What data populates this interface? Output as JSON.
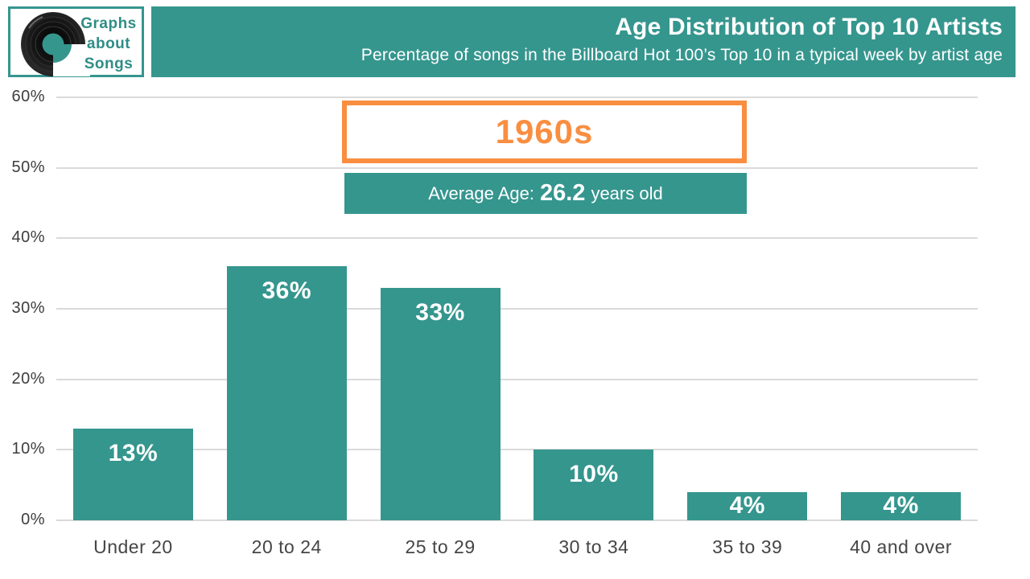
{
  "logo": {
    "line1": "Graphs",
    "line2": "about",
    "line3": "Songs"
  },
  "header": {
    "title": "Age Distribution of Top 10 Artists",
    "subtitle": "Percentage of songs in the Billboard Hot 100’s Top 10 in a typical week by artist age"
  },
  "annotation": {
    "decade": "1960s",
    "avg_prefix": "Average Age:",
    "avg_value": "26.2",
    "avg_suffix": "years old"
  },
  "colors": {
    "teal": "#35968E",
    "orange": "#F98E41",
    "gridline": "#DADADA",
    "axis_text": "#3D3D3D",
    "bar_label_text": "#FFFFFF"
  },
  "chart_data": {
    "type": "bar",
    "categories": [
      "Under 20",
      "20 to 24",
      "25 to 29",
      "30 to 34",
      "35 to 39",
      "40 and over"
    ],
    "values": [
      13,
      36,
      33,
      10,
      4,
      4
    ],
    "value_labels": [
      "13%",
      "36%",
      "33%",
      "10%",
      "4%",
      "4%"
    ],
    "yticks": [
      "0%",
      "10%",
      "20%",
      "30%",
      "40%",
      "50%",
      "60%"
    ],
    "title": "Age Distribution of Top 10 Artists",
    "xlabel": "",
    "ylabel": "",
    "ylim": [
      0,
      60
    ],
    "ytick_step": 10,
    "grid": true,
    "legend": false,
    "bar_color": "#35968E"
  }
}
